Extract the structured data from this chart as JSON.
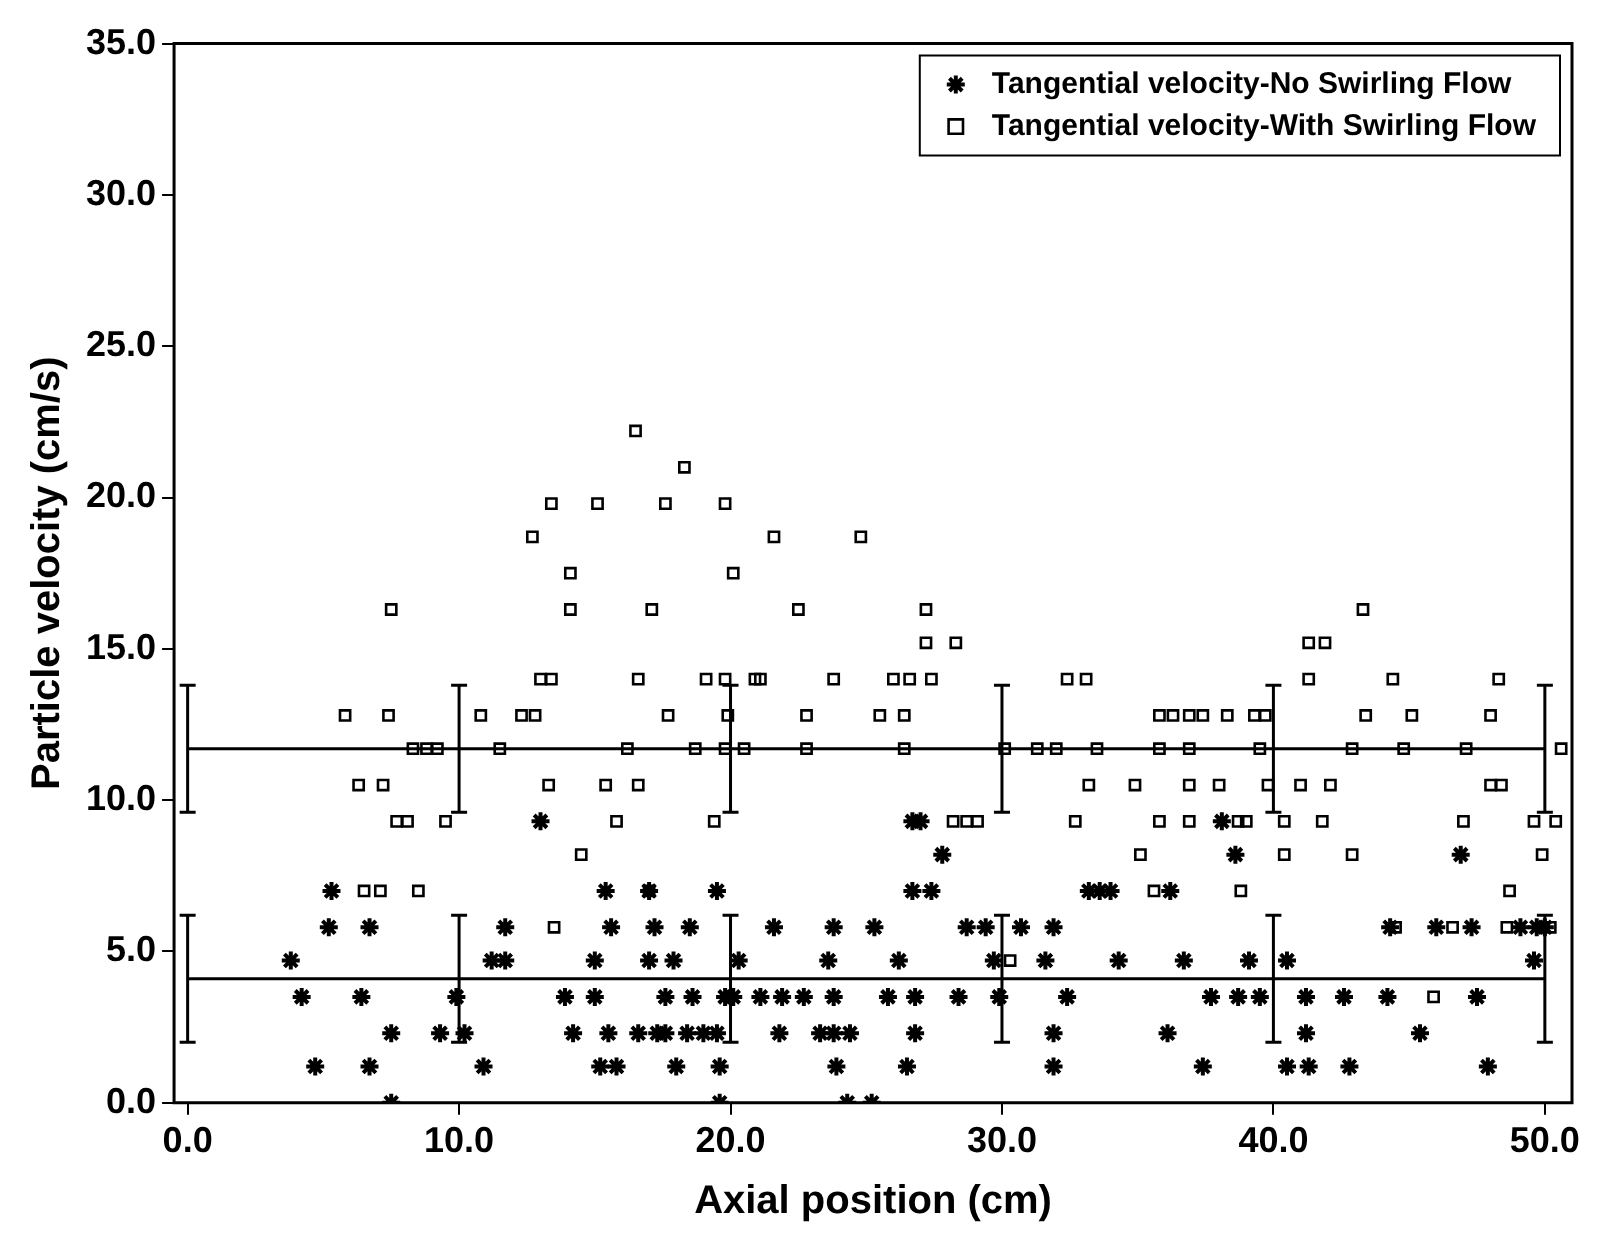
{
  "chart_data": {
    "type": "scatter",
    "xlabel": "Axial position (cm)",
    "ylabel": "Particle velocity (cm/s)",
    "xlim": [
      -0.5,
      51
    ],
    "xticks": [
      {
        "value": 0,
        "label": "0.0"
      },
      {
        "value": 10,
        "label": "10.0"
      },
      {
        "value": 20,
        "label": "20.0"
      },
      {
        "value": 30,
        "label": "30.0"
      },
      {
        "value": 40,
        "label": "40.0"
      },
      {
        "value": 50,
        "label": "50.0"
      }
    ],
    "ylim": [
      0,
      35
    ],
    "yticks": [
      {
        "value": 0,
        "label": "0.0"
      },
      {
        "value": 5,
        "label": "5.0"
      },
      {
        "value": 10,
        "label": "10.0"
      },
      {
        "value": 15,
        "label": "15.0"
      },
      {
        "value": 20,
        "label": "20.0"
      },
      {
        "value": 25,
        "label": "25.0"
      },
      {
        "value": 30,
        "label": "30.0"
      },
      {
        "value": 35,
        "label": "35.0"
      }
    ],
    "grid": false,
    "legend": "top right",
    "series": [
      {
        "name": "Tangential velocity-No Swirling Flow",
        "color": "#000000",
        "marker": "cross",
        "x": [
          13.0,
          26.7,
          27.0,
          38.1,
          27.8,
          38.6,
          46.9,
          5.3,
          15.4,
          17.0,
          19.5,
          26.7,
          27.4,
          33.2,
          33.6,
          34.0,
          36.2,
          5.2,
          6.7,
          11.7,
          15.6,
          17.2,
          18.5,
          21.6,
          23.8,
          25.3,
          28.7,
          29.4,
          30.7,
          31.9,
          44.3,
          46.0,
          47.3,
          49.1,
          49.7,
          50.0,
          3.8,
          11.2,
          11.7,
          15.0,
          17.0,
          17.9,
          20.3,
          23.6,
          26.2,
          29.7,
          31.6,
          34.3,
          36.7,
          39.1,
          40.5,
          49.6,
          4.2,
          6.4,
          9.9,
          13.9,
          15.0,
          17.6,
          18.6,
          19.8,
          20.1,
          21.1,
          21.9,
          22.7,
          23.8,
          25.8,
          26.8,
          28.4,
          29.9,
          32.4,
          37.7,
          38.7,
          39.5,
          41.2,
          42.6,
          44.2,
          47.5,
          7.5,
          9.3,
          10.2,
          14.2,
          15.5,
          16.6,
          17.3,
          17.6,
          18.4,
          19.0,
          19.5,
          21.8,
          23.3,
          23.8,
          24.4,
          26.8,
          31.9,
          36.1,
          41.2,
          45.4,
          4.7,
          6.7,
          10.9,
          15.2,
          15.8,
          18.0,
          19.6,
          23.9,
          26.5,
          31.9,
          37.4,
          40.5,
          41.3,
          42.8,
          47.9,
          7.5,
          19.6,
          24.3,
          25.2
        ],
        "values": [
          9.3,
          9.3,
          9.3,
          9.3,
          8.2,
          8.2,
          8.2,
          7.0,
          7.0,
          7.0,
          7.0,
          7.0,
          7.0,
          7.0,
          7.0,
          7.0,
          7.0,
          5.8,
          5.8,
          5.8,
          5.8,
          5.8,
          5.8,
          5.8,
          5.8,
          5.8,
          5.8,
          5.8,
          5.8,
          5.8,
          5.8,
          5.8,
          5.8,
          5.8,
          5.8,
          5.8,
          4.7,
          4.7,
          4.7,
          4.7,
          4.7,
          4.7,
          4.7,
          4.7,
          4.7,
          4.7,
          4.7,
          4.7,
          4.7,
          4.7,
          4.7,
          4.7,
          3.5,
          3.5,
          3.5,
          3.5,
          3.5,
          3.5,
          3.5,
          3.5,
          3.5,
          3.5,
          3.5,
          3.5,
          3.5,
          3.5,
          3.5,
          3.5,
          3.5,
          3.5,
          3.5,
          3.5,
          3.5,
          3.5,
          3.5,
          3.5,
          3.5,
          2.3,
          2.3,
          2.3,
          2.3,
          2.3,
          2.3,
          2.3,
          2.3,
          2.3,
          2.3,
          2.3,
          2.3,
          2.3,
          2.3,
          2.3,
          2.3,
          2.3,
          2.3,
          2.3,
          2.3,
          1.2,
          1.2,
          1.2,
          1.2,
          1.2,
          1.2,
          1.2,
          1.2,
          1.2,
          1.2,
          1.2,
          1.2,
          1.2,
          1.2,
          1.2,
          0,
          0,
          0,
          0
        ]
      },
      {
        "name": "Tangential velocity-With Swirling Flow",
        "color": "#000000",
        "marker": "square",
        "x": [
          16.5,
          18.3,
          13.4,
          15.1,
          17.6,
          19.8,
          12.7,
          21.6,
          24.8,
          14.1,
          20.1,
          7.5,
          14.1,
          17.1,
          22.5,
          27.2,
          43.3,
          27.2,
          28.3,
          41.3,
          41.9,
          13.0,
          13.4,
          16.6,
          19.1,
          19.8,
          20.9,
          21.1,
          23.8,
          26.0,
          26.6,
          27.4,
          32.4,
          33.1,
          41.3,
          44.4,
          48.3,
          5.8,
          7.4,
          10.8,
          12.3,
          12.8,
          17.7,
          19.9,
          22.8,
          25.5,
          26.4,
          35.8,
          36.3,
          36.9,
          37.4,
          38.3,
          39.3,
          39.7,
          43.4,
          45.1,
          48.0,
          8.3,
          8.8,
          9.2,
          11.5,
          16.2,
          18.7,
          19.8,
          20.5,
          22.8,
          26.4,
          30.1,
          31.3,
          32.0,
          33.5,
          35.8,
          36.9,
          39.5,
          42.9,
          44.8,
          47.1,
          50.6,
          6.3,
          7.2,
          13.3,
          15.4,
          16.6,
          33.2,
          34.9,
          36.9,
          38.0,
          39.8,
          41.0,
          42.1,
          48.0,
          48.4,
          7.7,
          8.1,
          9.5,
          15.8,
          19.4,
          28.2,
          28.7,
          29.1,
          32.7,
          35.8,
          36.9,
          38.7,
          39.0,
          40.4,
          41.8,
          47.0,
          49.6,
          50.4,
          14.5,
          35.1,
          40.4,
          42.9,
          49.9,
          6.5,
          7.1,
          8.5,
          17.0,
          35.6,
          38.8,
          48.7,
          13.5,
          44.5,
          46.6,
          48.6,
          50.2,
          30.3,
          45.9
        ],
        "values": [
          22.2,
          21.0,
          19.8,
          19.8,
          19.8,
          19.8,
          18.7,
          18.7,
          18.7,
          17.5,
          17.5,
          16.3,
          16.3,
          16.3,
          16.3,
          16.3,
          16.3,
          15.2,
          15.2,
          15.2,
          15.2,
          14.0,
          14.0,
          14.0,
          14.0,
          14.0,
          14.0,
          14.0,
          14.0,
          14.0,
          14.0,
          14.0,
          14.0,
          14.0,
          14.0,
          14.0,
          14.0,
          12.8,
          12.8,
          12.8,
          12.8,
          12.8,
          12.8,
          12.8,
          12.8,
          12.8,
          12.8,
          12.8,
          12.8,
          12.8,
          12.8,
          12.8,
          12.8,
          12.8,
          12.8,
          12.8,
          12.8,
          11.7,
          11.7,
          11.7,
          11.7,
          11.7,
          11.7,
          11.7,
          11.7,
          11.7,
          11.7,
          11.7,
          11.7,
          11.7,
          11.7,
          11.7,
          11.7,
          11.7,
          11.7,
          11.7,
          11.7,
          11.7,
          10.5,
          10.5,
          10.5,
          10.5,
          10.5,
          10.5,
          10.5,
          10.5,
          10.5,
          10.5,
          10.5,
          10.5,
          10.5,
          10.5,
          9.3,
          9.3,
          9.3,
          9.3,
          9.3,
          9.3,
          9.3,
          9.3,
          9.3,
          9.3,
          9.3,
          9.3,
          9.3,
          9.3,
          9.3,
          9.3,
          9.3,
          9.3,
          8.2,
          8.2,
          8.2,
          8.2,
          8.2,
          7.0,
          7.0,
          7.0,
          7.0,
          7.0,
          7.0,
          7.0,
          5.8,
          5.8,
          5.8,
          5.8,
          5.8,
          4.7,
          3.5
        ]
      },
      {
        "type": "line",
        "color": "#000000",
        "marker": "none",
        "x": [
          0,
          10,
          20,
          30,
          40,
          50
        ],
        "values": [
          11.7,
          11.7,
          11.7,
          11.7,
          11.7,
          11.7
        ],
        "errors": [
          2.1,
          2.1,
          2.1,
          2.1,
          2.1,
          2.1
        ]
      },
      {
        "type": "line",
        "color": "#000000",
        "marker": "none",
        "x": [
          0,
          10,
          20,
          30,
          40,
          50
        ],
        "values": [
          4.1,
          4.1,
          4.1,
          4.1,
          4.1,
          4.1
        ],
        "errors": [
          2.1,
          2.1,
          2.1,
          2.1,
          2.1,
          2.1
        ]
      }
    ]
  }
}
